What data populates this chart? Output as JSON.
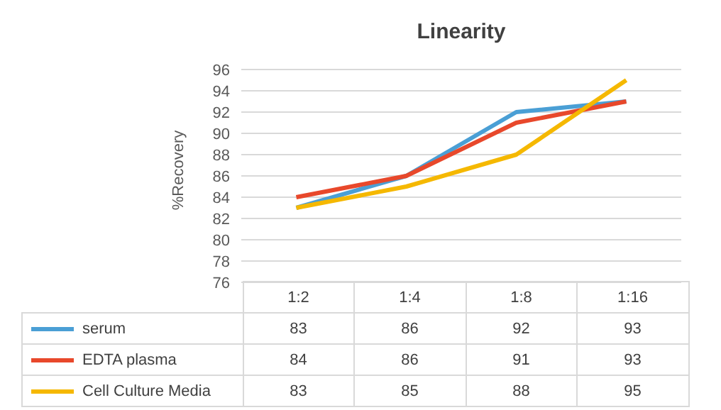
{
  "chart_data": {
    "type": "line",
    "title": "Linearity",
    "ylabel": "%Recovery",
    "categories": [
      "1:2",
      "1:4",
      "1:8",
      "1:16"
    ],
    "series": [
      {
        "name": "serum",
        "color": "#4a9fd5",
        "values": [
          83,
          86,
          92,
          93
        ]
      },
      {
        "name": "EDTA plasma",
        "color": "#e8482b",
        "values": [
          84,
          86,
          91,
          93
        ]
      },
      {
        "name": "Cell Culture Media",
        "color": "#f5b800",
        "values": [
          83,
          85,
          88,
          95
        ]
      }
    ],
    "ylim": [
      76,
      96
    ],
    "yticks": [
      76,
      78,
      80,
      82,
      84,
      86,
      88,
      90,
      92,
      94,
      96
    ],
    "grid": "y",
    "legend": "bottom",
    "data_labels": true,
    "marker": "none",
    "line_style": "solid"
  }
}
